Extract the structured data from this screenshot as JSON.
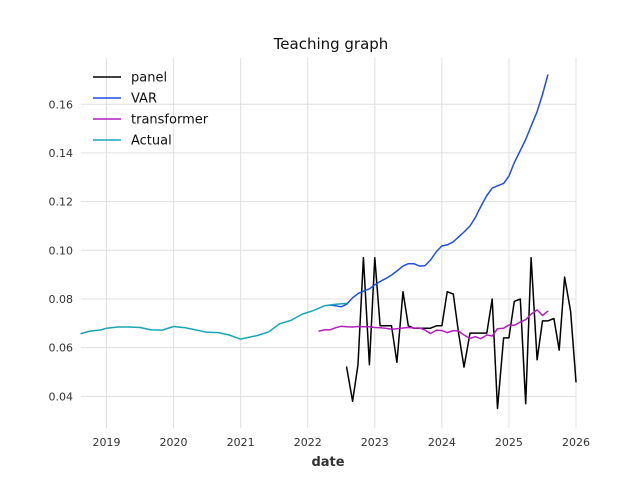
{
  "chart_data": {
    "type": "line",
    "title": "Teaching graph",
    "xlabel": "date",
    "ylabel": "",
    "x_ticks": [
      "2019",
      "2020",
      "2021",
      "2022",
      "2023",
      "2024",
      "2025",
      "2026"
    ],
    "y_ticks": [
      "0.04",
      "0.06",
      "0.08",
      "0.10",
      "0.12",
      "0.14",
      "0.16"
    ],
    "xlim": [
      2018.62,
      2026.0
    ],
    "ylim": [
      0.027,
      0.179
    ],
    "grid": true,
    "legend_position": "top-left",
    "series": [
      {
        "name": "panel",
        "color": "#000000",
        "x": [
          2022.58,
          2022.67,
          2022.75,
          2022.83,
          2022.92,
          2023.0,
          2023.08,
          2023.17,
          2023.25,
          2023.33,
          2023.42,
          2023.5,
          2023.58,
          2023.67,
          2023.75,
          2023.83,
          2023.92,
          2024.0,
          2024.08,
          2024.17,
          2024.25,
          2024.33,
          2024.42,
          2024.5,
          2024.58,
          2024.67,
          2024.75,
          2024.83,
          2024.92,
          2025.0,
          2025.08,
          2025.17,
          2025.25,
          2025.33,
          2025.42,
          2025.5,
          2025.58,
          2025.67,
          2025.75,
          2025.83,
          2025.92,
          2026.0
        ],
        "y": [
          0.052,
          0.038,
          0.053,
          0.097,
          0.053,
          0.097,
          0.069,
          0.069,
          0.069,
          0.054,
          0.083,
          0.069,
          0.068,
          0.068,
          0.068,
          0.068,
          0.069,
          0.069,
          0.083,
          0.082,
          0.066,
          0.052,
          0.066,
          0.066,
          0.066,
          0.066,
          0.08,
          0.035,
          0.064,
          0.064,
          0.079,
          0.08,
          0.037,
          0.097,
          0.055,
          0.071,
          0.071,
          0.072,
          0.059,
          0.089,
          0.075,
          0.046
        ]
      },
      {
        "name": "VAR",
        "color": "#1f4fe6",
        "x": [
          2022.33,
          2022.42,
          2022.5,
          2022.58,
          2022.67,
          2022.75,
          2022.83,
          2022.92,
          2023.0,
          2023.08,
          2023.17,
          2023.25,
          2023.33,
          2023.42,
          2023.5,
          2023.58,
          2023.67,
          2023.75,
          2023.83,
          2023.92,
          2024.0,
          2024.08,
          2024.17,
          2024.25,
          2024.33,
          2024.42,
          2024.5,
          2024.58,
          2024.67,
          2024.75,
          2024.83,
          2024.92,
          2025.0,
          2025.08,
          2025.17,
          2025.25,
          2025.33,
          2025.42,
          2025.5,
          2025.58
        ],
        "y": [
          0.0775,
          0.0772,
          0.0768,
          0.0778,
          0.0805,
          0.0822,
          0.0832,
          0.0842,
          0.0858,
          0.0872,
          0.0885,
          0.0898,
          0.0915,
          0.0935,
          0.0945,
          0.0945,
          0.0935,
          0.0937,
          0.096,
          0.0995,
          0.1018,
          0.1022,
          0.1035,
          0.1055,
          0.1075,
          0.11,
          0.1135,
          0.118,
          0.1225,
          0.1255,
          0.1265,
          0.1275,
          0.1305,
          0.136,
          0.141,
          0.1455,
          0.151,
          0.157,
          0.164,
          0.172
        ]
      },
      {
        "name": "transformer",
        "color": "#b31fbf",
        "x": [
          2022.17,
          2022.25,
          2022.33,
          2022.42,
          2022.5,
          2022.58,
          2022.67,
          2022.75,
          2022.83,
          2022.92,
          2023.0,
          2023.08,
          2023.17,
          2023.25,
          2023.33,
          2023.42,
          2023.5,
          2023.58,
          2023.67,
          2023.75,
          2023.83,
          2023.92,
          2024.0,
          2024.08,
          2024.17,
          2024.25,
          2024.33,
          2024.42,
          2024.5,
          2024.58,
          2024.67,
          2024.75,
          2024.83,
          2024.92,
          2025.0,
          2025.08,
          2025.17,
          2025.25,
          2025.33,
          2025.42,
          2025.5,
          2025.58
        ],
        "y": [
          0.0668,
          0.0673,
          0.0673,
          0.0682,
          0.0688,
          0.0686,
          0.0685,
          0.0687,
          0.0686,
          0.0686,
          0.0683,
          0.0682,
          0.0679,
          0.0676,
          0.0678,
          0.0681,
          0.0683,
          0.0681,
          0.0681,
          0.0672,
          0.0658,
          0.0672,
          0.067,
          0.0662,
          0.067,
          0.0668,
          0.0652,
          0.0638,
          0.0645,
          0.0637,
          0.0652,
          0.0648,
          0.0678,
          0.068,
          0.0693,
          0.0692,
          0.0705,
          0.0715,
          0.0738,
          0.0755,
          0.0732,
          0.075
        ]
      },
      {
        "name": "Actual",
        "color": "#18a6b5",
        "x": [
          2018.62,
          2018.75,
          2018.92,
          2019.0,
          2019.17,
          2019.33,
          2019.5,
          2019.67,
          2019.83,
          2020.0,
          2020.17,
          2020.33,
          2020.5,
          2020.67,
          2020.83,
          2021.0,
          2021.08,
          2021.25,
          2021.42,
          2021.58,
          2021.75,
          2021.92,
          2022.08,
          2022.25,
          2022.42,
          2022.58
        ],
        "y": [
          0.0658,
          0.0668,
          0.0673,
          0.068,
          0.0685,
          0.0685,
          0.0683,
          0.0673,
          0.0672,
          0.0687,
          0.0682,
          0.0673,
          0.0663,
          0.0662,
          0.0652,
          0.0635,
          0.064,
          0.065,
          0.0665,
          0.0698,
          0.0712,
          0.0738,
          0.0752,
          0.0772,
          0.0778,
          0.0782
        ]
      }
    ]
  }
}
